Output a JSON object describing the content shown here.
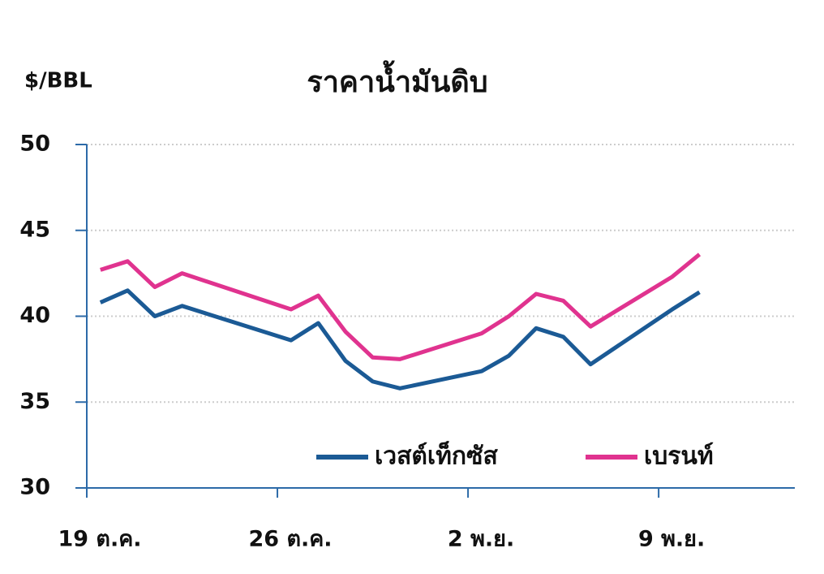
{
  "chart_data": {
    "type": "line",
    "title": "ราคาน้ำมันดิบ",
    "y_label": "$/BBL",
    "x": [
      0.5,
      1.5,
      2.5,
      3.5,
      7.5,
      8.5,
      9.5,
      10.5,
      11.5,
      14.5,
      15.5,
      16.5,
      17.5,
      18.5,
      21.5,
      22.5
    ],
    "series": [
      {
        "name": "เวสต์เท็กซัส",
        "color": "#1b5a95",
        "values": [
          40.8,
          41.5,
          40.0,
          40.6,
          38.6,
          39.6,
          37.4,
          36.2,
          35.8,
          36.8,
          37.7,
          39.3,
          38.8,
          37.2,
          40.4,
          41.4
        ]
      },
      {
        "name": "เบรนท์",
        "color": "#e0338f",
        "values": [
          42.7,
          43.2,
          41.7,
          42.5,
          40.4,
          41.2,
          39.1,
          37.6,
          37.5,
          39.0,
          40.0,
          41.3,
          40.9,
          39.4,
          42.3,
          43.6
        ]
      }
    ],
    "xlim": [
      0,
      26
    ],
    "xticks": [
      {
        "value": 0,
        "label": "19 ต.ค."
      },
      {
        "value": 7,
        "label": "26 ต.ค."
      },
      {
        "value": 14,
        "label": "2 พ.ย."
      },
      {
        "value": 21,
        "label": "9 พ.ย."
      }
    ],
    "ylim": [
      30,
      50
    ],
    "yticks": [
      30,
      35,
      40,
      45,
      50
    ],
    "grid": true
  }
}
